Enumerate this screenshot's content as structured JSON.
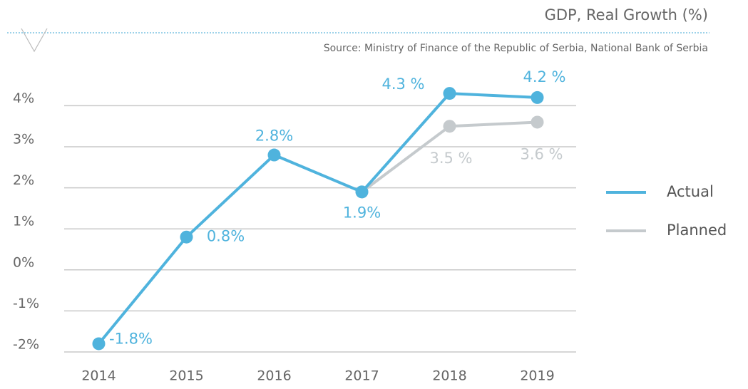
{
  "chart_data": {
    "type": "line",
    "title": "GDP, Real Growth (%)",
    "subtitle": "Source: Ministry of Finance of the Republic of Serbia, National Bank of Serbia",
    "categories": [
      "2014",
      "2015",
      "2016",
      "2017",
      "2018",
      "2019"
    ],
    "series": [
      {
        "name": "Actual",
        "color": "#4fb3dd",
        "values": [
          -1.8,
          0.8,
          2.8,
          1.9,
          4.3,
          4.2
        ],
        "value_labels": [
          "-1.8%",
          "0.8%",
          "2.8%",
          "1.9%",
          "4.3 %",
          "4.2 %"
        ]
      },
      {
        "name": "Planned",
        "color": "#c5cacd",
        "values": [
          null,
          null,
          null,
          1.9,
          3.5,
          3.6
        ],
        "value_labels": [
          null,
          null,
          null,
          null,
          "3.5 %",
          "3.6 %"
        ]
      }
    ],
    "ylim": [
      -2,
      4.5
    ],
    "yticks": [
      {
        "value": -2,
        "label": "-2%"
      },
      {
        "value": -1,
        "label": "-1%"
      },
      {
        "value": 0,
        "label": "0%"
      },
      {
        "value": 1,
        "label": "1%"
      },
      {
        "value": 2,
        "label": "2%"
      },
      {
        "value": 3,
        "label": "3%"
      },
      {
        "value": 4,
        "label": "4%"
      }
    ],
    "grid": true,
    "legend": "right"
  }
}
